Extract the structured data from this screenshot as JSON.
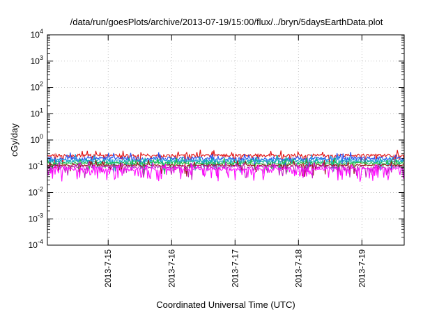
{
  "chart_data": {
    "type": "line",
    "title": "/data/run/goesPlots/archive/2013-07-19/15:00/flux/../bryn/5daysEarthData.plot",
    "xlabel": "Coordinated Universal Time (UTC)",
    "ylabel": "cGy/day",
    "yscale": "log",
    "ylim": [
      0.0001,
      10000
    ],
    "y_ticks": [
      {
        "value": 0.0001,
        "base": "10",
        "exp": "-4"
      },
      {
        "value": 0.001,
        "base": "10",
        "exp": "-3"
      },
      {
        "value": 0.01,
        "base": "10",
        "exp": "-2"
      },
      {
        "value": 0.1,
        "base": "10",
        "exp": "-1"
      },
      {
        "value": 1,
        "base": "10",
        "exp": "0"
      },
      {
        "value": 10,
        "base": "10",
        "exp": "1"
      },
      {
        "value": 100,
        "base": "10",
        "exp": "2"
      },
      {
        "value": 1000,
        "base": "10",
        "exp": "3"
      },
      {
        "value": 10000,
        "base": "10",
        "exp": "4"
      }
    ],
    "xlim": [
      "2013-07-14 01:00",
      "2013-07-19 16:00"
    ],
    "x_ticks": [
      "2013-7-15",
      "2013-7-16",
      "2013-7-17",
      "2013-7-18",
      "2013-7-19"
    ],
    "grid": true,
    "series": [
      {
        "color": "#e01010",
        "level": 0.26,
        "spread": 0.12,
        "dips": 0.06
      },
      {
        "color": "#2850f0",
        "level": 0.2,
        "spread": 0.14,
        "dips": 0.08
      },
      {
        "color": "#20a0e0",
        "level": 0.17,
        "spread": 0.12,
        "dips": 0.07
      },
      {
        "color": "#10b0a0",
        "level": 0.15,
        "spread": 0.1,
        "dips": 0.06
      },
      {
        "color": "#20c040",
        "level": 0.13,
        "spread": 0.09,
        "dips": 0.06
      },
      {
        "color": "#a01020",
        "level": 0.11,
        "spread": 0.07,
        "dips": 0.05
      },
      {
        "color": "#c020c0",
        "level": 0.095,
        "spread": 0.12,
        "dips": 0.18
      },
      {
        "color": "#ff10ff",
        "level": 0.08,
        "spread": 0.14,
        "dips": 0.22
      }
    ]
  }
}
